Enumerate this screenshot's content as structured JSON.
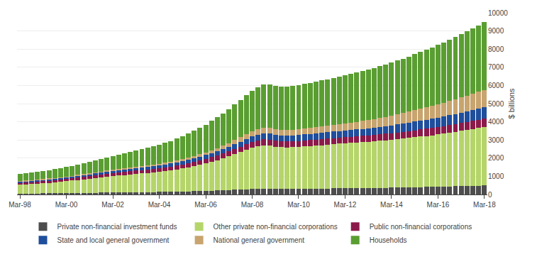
{
  "chart_data": {
    "type": "bar",
    "stacked": true,
    "ylabel": "$ billions",
    "categories": [
      "Mar-98",
      null,
      null,
      null,
      null,
      null,
      null,
      null,
      "Mar-00",
      null,
      null,
      null,
      null,
      null,
      null,
      null,
      "Mar-02",
      null,
      null,
      null,
      null,
      null,
      null,
      null,
      "Mar-04",
      null,
      null,
      null,
      null,
      null,
      null,
      null,
      "Mar-06",
      null,
      null,
      null,
      null,
      null,
      null,
      null,
      "Mar-08",
      null,
      null,
      null,
      null,
      null,
      null,
      null,
      "Mar-10",
      null,
      null,
      null,
      null,
      null,
      null,
      null,
      "Mar-12",
      null,
      null,
      null,
      null,
      null,
      null,
      null,
      "Mar-14",
      null,
      null,
      null,
      null,
      null,
      null,
      null,
      "Mar-16",
      null,
      null,
      null,
      null,
      null,
      null,
      null,
      "Mar-18"
    ],
    "series": [
      {
        "name": "Private non-financial investment funds",
        "color": "#4d4d4d",
        "values": [
          50,
          52,
          55,
          58,
          60,
          62,
          65,
          68,
          70,
          75,
          80,
          85,
          90,
          95,
          100,
          105,
          108,
          112,
          116,
          120,
          123,
          127,
          130,
          133,
          137,
          142,
          148,
          155,
          162,
          170,
          178,
          188,
          198,
          210,
          220,
          232,
          245,
          258,
          272,
          286,
          298,
          308,
          318,
          320,
          315,
          310,
          308,
          310,
          312,
          315,
          318,
          322,
          325,
          330,
          335,
          340,
          342,
          345,
          348,
          352,
          355,
          358,
          362,
          368,
          372,
          378,
          385,
          392,
          398,
          405,
          412,
          420,
          428,
          435,
          442,
          450,
          458,
          465,
          472,
          480,
          490
        ]
      },
      {
        "name": "Other private non-financial corporations",
        "color": "#b5d56a",
        "values": [
          480,
          500,
          520,
          540,
          560,
          580,
          600,
          630,
          660,
          690,
          720,
          750,
          780,
          810,
          840,
          870,
          900,
          930,
          955,
          980,
          1005,
          1030,
          1055,
          1080,
          1105,
          1140,
          1175,
          1220,
          1265,
          1320,
          1375,
          1440,
          1510,
          1590,
          1670,
          1760,
          1855,
          1960,
          2060,
          2170,
          2270,
          2340,
          2390,
          2360,
          2310,
          2290,
          2280,
          2290,
          2310,
          2330,
          2350,
          2370,
          2390,
          2410,
          2435,
          2455,
          2475,
          2495,
          2510,
          2530,
          2550,
          2570,
          2590,
          2615,
          2640,
          2665,
          2690,
          2720,
          2750,
          2780,
          2810,
          2840,
          2875,
          2910,
          2950,
          2995,
          3040,
          3085,
          3130,
          3175,
          3220
        ]
      },
      {
        "name": "Public non-financial corporations",
        "color": "#8b1a4a",
        "values": [
          100,
          103,
          106,
          109,
          112,
          115,
          118,
          122,
          126,
          130,
          135,
          140,
          145,
          150,
          155,
          160,
          165,
          170,
          175,
          180,
          185,
          190,
          195,
          200,
          205,
          210,
          215,
          220,
          225,
          230,
          235,
          242,
          248,
          255,
          262,
          270,
          278,
          287,
          296,
          306,
          315,
          322,
          328,
          330,
          330,
          328,
          326,
          325,
          325,
          326,
          327,
          328,
          330,
          332,
          334,
          336,
          338,
          340,
          342,
          345,
          348,
          352,
          356,
          360,
          365,
          370,
          375,
          380,
          386,
          392,
          398,
          405,
          412,
          418,
          424,
          430,
          438,
          444,
          450,
          456,
          462
        ]
      },
      {
        "name": "State and local general government",
        "color": "#1f4e9c",
        "values": [
          80,
          82,
          84,
          86,
          88,
          90,
          92,
          95,
          98,
          101,
          105,
          109,
          113,
          117,
          121,
          125,
          129,
          133,
          137,
          141,
          145,
          149,
          153,
          157,
          161,
          166,
          171,
          177,
          183,
          190,
          197,
          205,
          213,
          222,
          232,
          243,
          255,
          268,
          282,
          297,
          312,
          322,
          330,
          332,
          330,
          328,
          326,
          325,
          328,
          332,
          336,
          340,
          345,
          350,
          355,
          360,
          365,
          370,
          376,
          382,
          390,
          398,
          408,
          418,
          428,
          438,
          448,
          460,
          472,
          484,
          496,
          510,
          522,
          534,
          546,
          558,
          570,
          582,
          594,
          606,
          618
        ]
      },
      {
        "name": "National general government",
        "color": "#c8a46e",
        "values": [
          30,
          31,
          32,
          33,
          34,
          35,
          36,
          37,
          38,
          39,
          41,
          43,
          45,
          47,
          49,
          52,
          55,
          58,
          61,
          65,
          68,
          72,
          76,
          80,
          84,
          90,
          96,
          102,
          108,
          116,
          124,
          133,
          143,
          155,
          168,
          182,
          198,
          216,
          236,
          258,
          282,
          300,
          318,
          325,
          320,
          315,
          312,
          315,
          320,
          325,
          330,
          340,
          350,
          360,
          372,
          385,
          398,
          412,
          425,
          440,
          455,
          472,
          490,
          510,
          532,
          555,
          578,
          602,
          625,
          648,
          672,
          698,
          722,
          748,
          775,
          805,
          835,
          865,
          895,
          928,
          962
        ]
      },
      {
        "name": "Households",
        "color": "#5a9e32",
        "values": [
          380,
          395,
          410,
          425,
          440,
          458,
          476,
          498,
          520,
          545,
          570,
          600,
          630,
          660,
          692,
          725,
          758,
          792,
          825,
          858,
          892,
          928,
          965,
          1002,
          1042,
          1090,
          1140,
          1195,
          1255,
          1320,
          1388,
          1460,
          1535,
          1615,
          1695,
          1780,
          1870,
          1965,
          2060,
          2155,
          2245,
          2310,
          2360,
          2375,
          2365,
          2370,
          2380,
          2400,
          2425,
          2450,
          2476,
          2502,
          2530,
          2558,
          2587,
          2618,
          2648,
          2678,
          2710,
          2742,
          2776,
          2810,
          2845,
          2882,
          2920,
          2960,
          3000,
          3042,
          3085,
          3130,
          3178,
          3228,
          3280,
          3330,
          3382,
          3435,
          3490,
          3548,
          3608,
          3670,
          3735
        ]
      }
    ],
    "ylim": [
      0,
      10000
    ],
    "yticks": [
      0,
      1000,
      2000,
      3000,
      4000,
      5000,
      6000,
      7000,
      8000,
      9000,
      10000
    ],
    "grid": true,
    "legend": "bottom"
  }
}
